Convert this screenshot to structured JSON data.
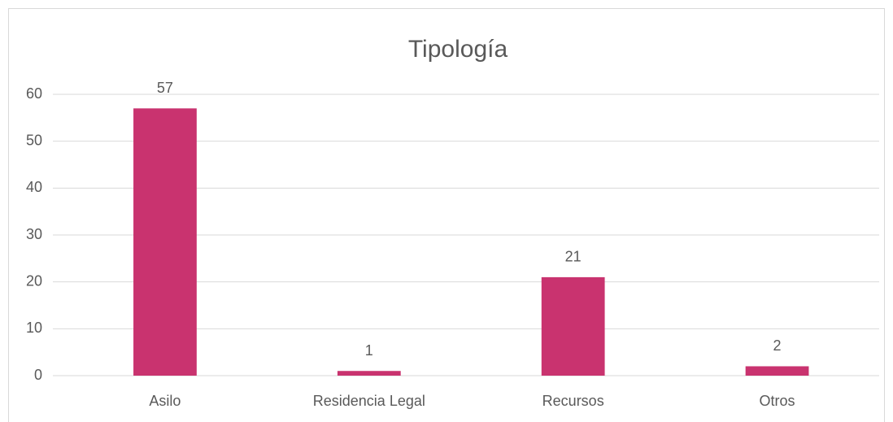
{
  "chart_data": {
    "type": "bar",
    "title": "Tipología",
    "categories": [
      "Asilo",
      "Residencia Legal",
      "Recursos",
      "Otros"
    ],
    "values": [
      57,
      1,
      21,
      2
    ],
    "color": "#c9336f",
    "ylim": [
      0,
      60
    ],
    "yticks": [
      0,
      10,
      20,
      30,
      40,
      50,
      60
    ],
    "grid": true
  }
}
